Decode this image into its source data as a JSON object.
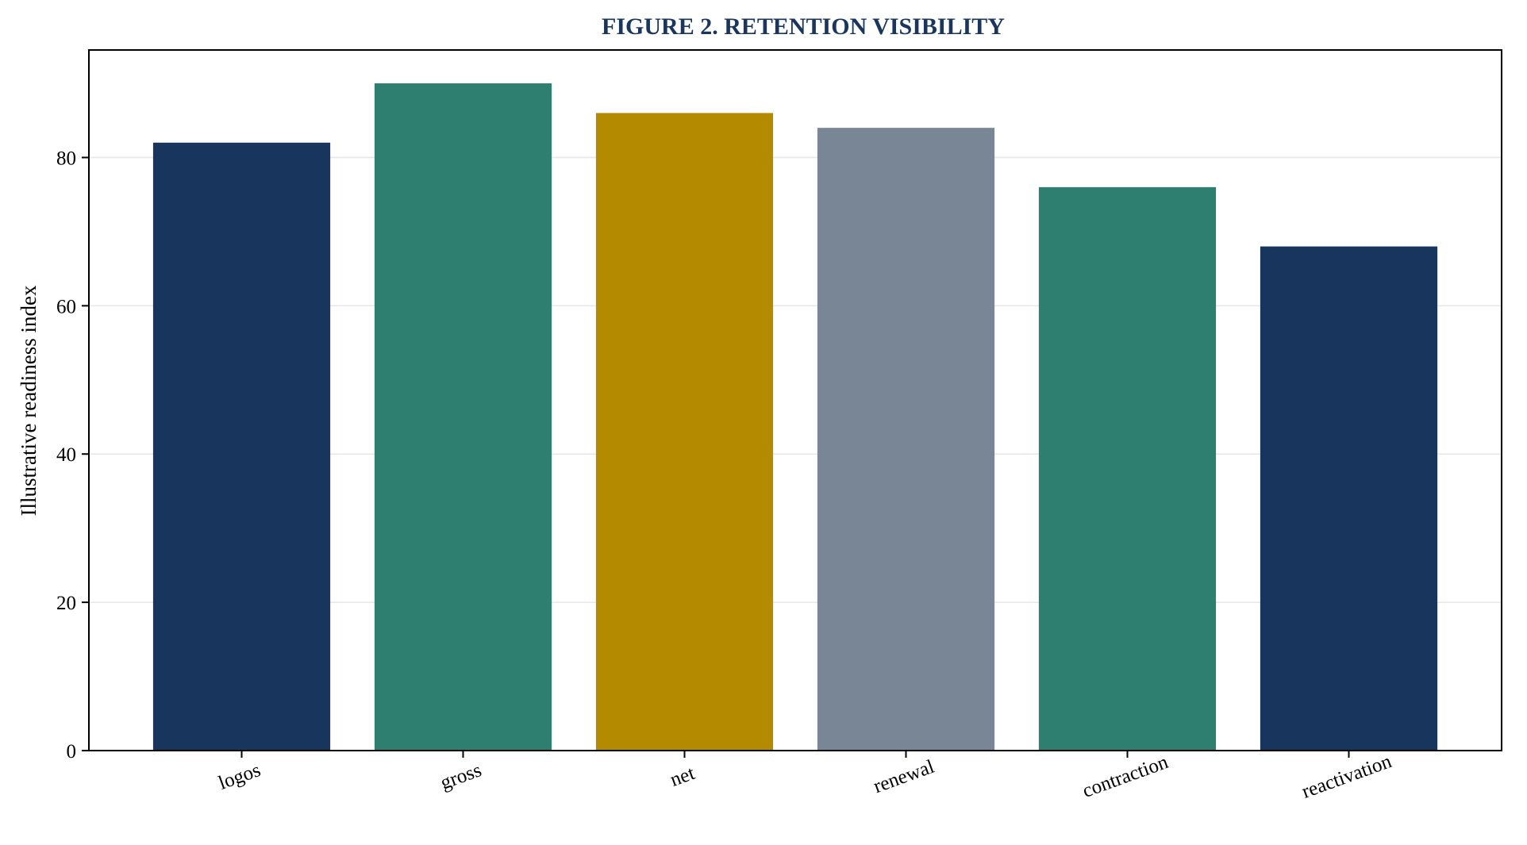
{
  "chart_data": {
    "type": "bar",
    "title": "FIGURE 2. RETENTION VISIBILITY",
    "title_color": "#1b365d",
    "xlabel": "",
    "ylabel": "Illustrative readiness index",
    "categories": [
      "logos",
      "gross",
      "net",
      "renewal",
      "contraction",
      "reactivation"
    ],
    "values": [
      82,
      90,
      86,
      84,
      76,
      68
    ],
    "bar_colors": [
      "#18365d",
      "#2e7f6f",
      "#b38a00",
      "#788696",
      "#2e7f6f",
      "#18365d"
    ],
    "ylim": [
      0,
      94.5
    ],
    "yticks": [
      0,
      20,
      40,
      60,
      80
    ],
    "grid": "horizontal",
    "grid_color": "#e6e6e6",
    "legend": "none",
    "x_tick_rotation_deg": -20
  }
}
